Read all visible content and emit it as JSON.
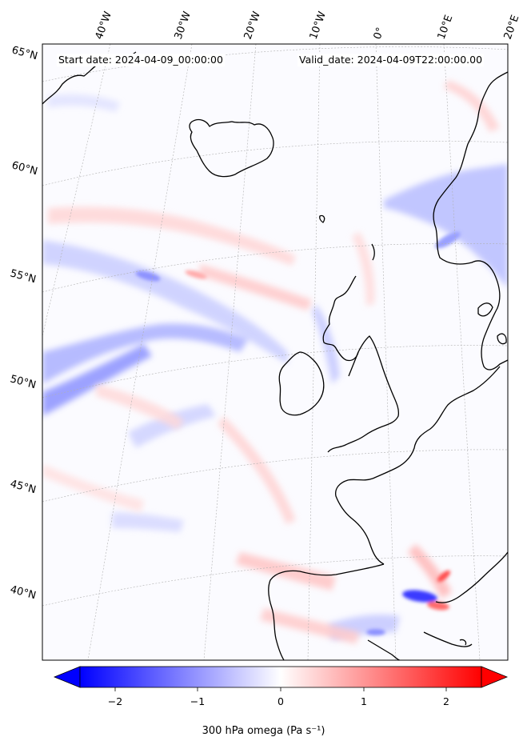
{
  "header": {
    "start_date": "Start date: 2024-04-09_00:00:00",
    "valid_date": "Valid_date: 2024-04-09T22:00:00.00"
  },
  "longitude_labels": [
    "40°W",
    "30°W",
    "20°W",
    "10°W",
    "0°",
    "10°E",
    "20°E"
  ],
  "latitude_labels": [
    "65°N",
    "60°N",
    "55°N",
    "50°N",
    "45°N",
    "40°N"
  ],
  "colorbar": {
    "label": "300 hPa omega (Pa s⁻¹)",
    "ticks": [
      "−2",
      "−1",
      "0",
      "1",
      "2"
    ],
    "range": [
      -2.6,
      2.6
    ],
    "extend": "both",
    "colormap": "bwr"
  },
  "colors": {
    "negative": "#0000ff",
    "zero": "#ffffff",
    "positive": "#ff0000",
    "coastline": "#000000",
    "gridline": "#b0b0b0"
  }
}
